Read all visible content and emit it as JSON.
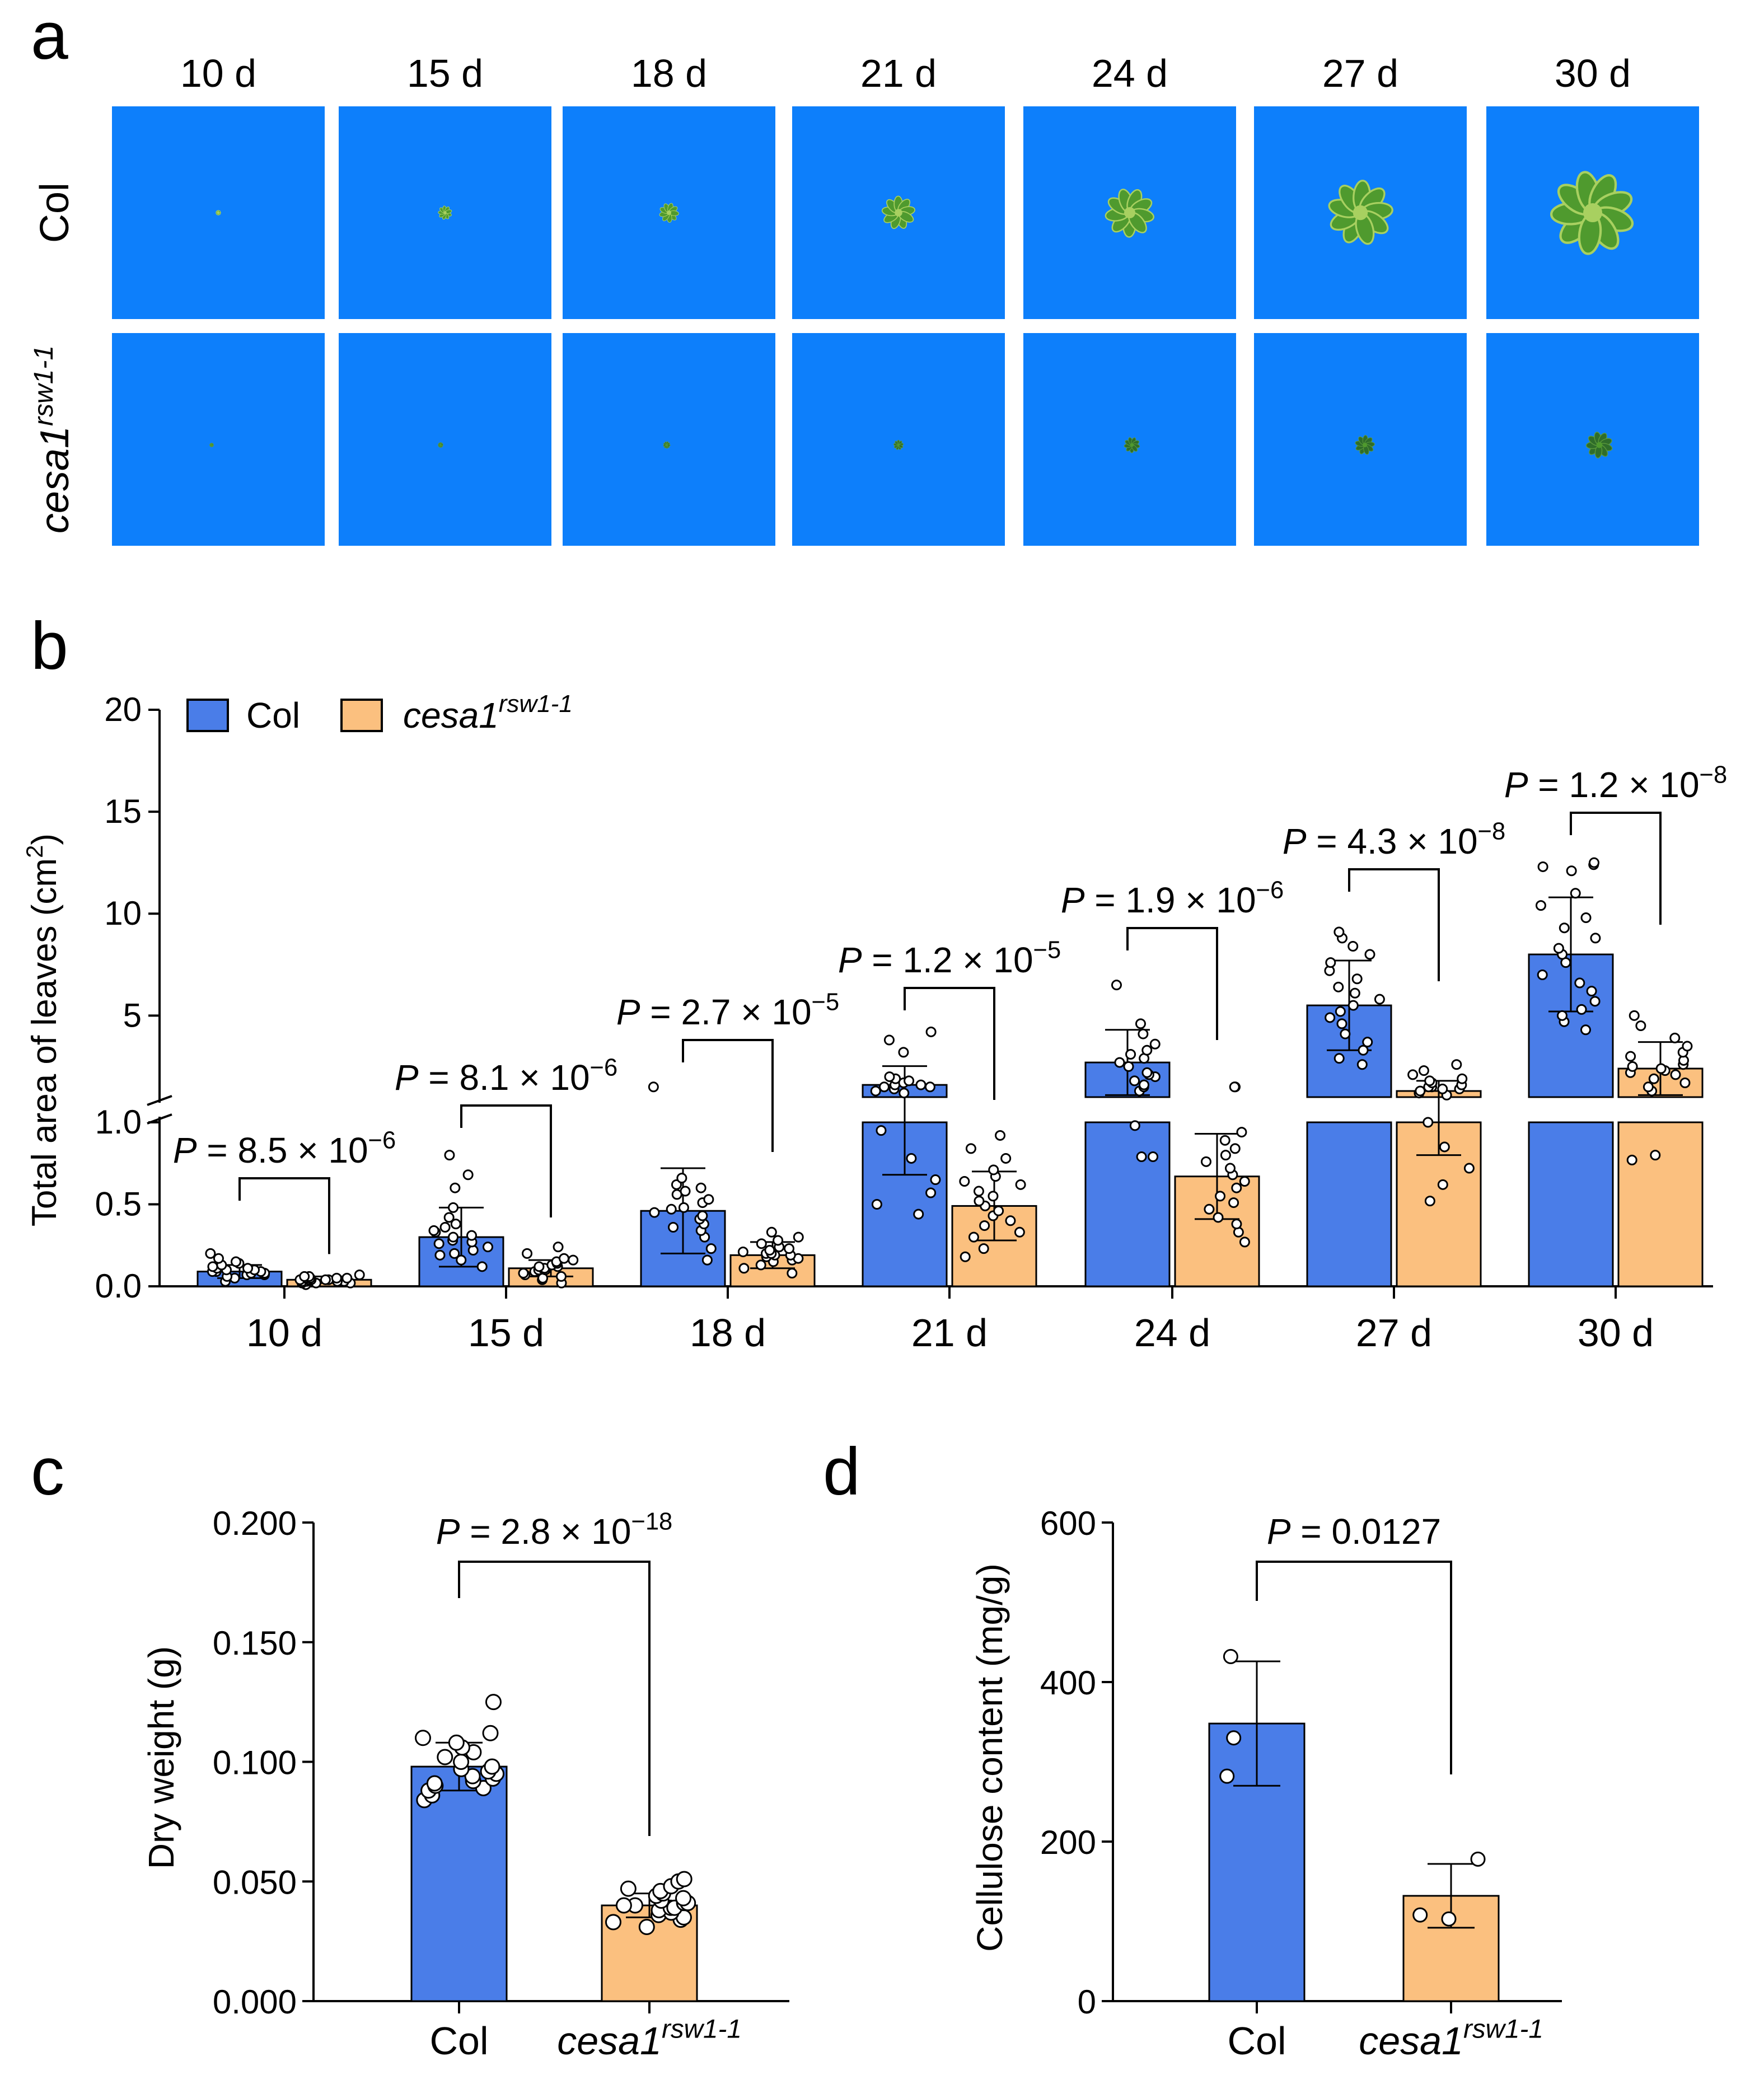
{
  "panel_labels": {
    "a": "a",
    "b": "b",
    "c": "c",
    "d": "d"
  },
  "colors": {
    "col": "#4a7de8",
    "mutant": "#fbc07f",
    "photo_bg": "#0d7ffb",
    "plant": "#4f9a2e",
    "plant_light": "#a8d060",
    "mutant_plant": "#2f6d2a"
  },
  "panel_a": {
    "days": [
      "10 d",
      "15 d",
      "18 d",
      "21 d",
      "24 d",
      "27 d",
      "30 d"
    ],
    "rows": [
      {
        "label": "Col",
        "italic": false,
        "plant_sizes": [
          0.05,
          0.14,
          0.2,
          0.34,
          0.5,
          0.66,
          0.85
        ]
      },
      {
        "label": "cesa1",
        "sup": "rsw1-1",
        "italic": true,
        "plant_sizes": [
          0.03,
          0.05,
          0.07,
          0.1,
          0.16,
          0.2,
          0.27
        ]
      }
    ]
  },
  "chart_data": [
    {
      "id": "b",
      "type": "bar",
      "title": "",
      "xlabel": "",
      "ylabel": "Total area of leaves (cm",
      "ylabel_sup": "2",
      "ylabel_tail": ")",
      "axis_break": true,
      "ylim_lower": [
        0,
        1.0
      ],
      "ylim_upper": [
        1.0,
        20
      ],
      "yticks_lower": [
        "0.0",
        "0.5",
        "1.0"
      ],
      "yticks_upper": [
        "5",
        "10",
        "15",
        "20"
      ],
      "legend": {
        "position": "top-left",
        "entries": [
          {
            "label": "Col",
            "series": "Col"
          },
          {
            "label": "cesa1",
            "sup": "rsw1-1",
            "italic": true,
            "series": "cesa1rsw1-1"
          }
        ]
      },
      "categories": [
        "10 d",
        "15 d",
        "18 d",
        "21 d",
        "24 d",
        "27 d",
        "30 d"
      ],
      "series": [
        {
          "name": "Col",
          "values": [
            0.09,
            0.3,
            0.46,
            1.6,
            2.7,
            5.5,
            8.0
          ],
          "sd": [
            0.04,
            0.18,
            0.26,
            0.92,
            1.6,
            2.2,
            2.8
          ],
          "points": [
            [
              0.03,
              0.05,
              0.06,
              0.07,
              0.07,
              0.08,
              0.08,
              0.09,
              0.09,
              0.09,
              0.1,
              0.1,
              0.11,
              0.11,
              0.12,
              0.13,
              0.14,
              0.15,
              0.17,
              0.2
            ],
            [
              0.12,
              0.16,
              0.19,
              0.2,
              0.22,
              0.24,
              0.26,
              0.27,
              0.28,
              0.3,
              0.31,
              0.33,
              0.34,
              0.36,
              0.38,
              0.42,
              0.48,
              0.6,
              0.68,
              0.8
            ],
            [
              0.16,
              0.23,
              0.3,
              0.34,
              0.36,
              0.38,
              0.41,
              0.43,
              0.45,
              0.47,
              0.48,
              0.51,
              0.53,
              0.56,
              0.58,
              0.6,
              0.62,
              0.66,
              1.5
            ],
            [
              0.44,
              0.5,
              0.57,
              0.65,
              0.78,
              0.95,
              1.2,
              1.3,
              1.4,
              1.5,
              1.5,
              1.6,
              1.6,
              1.7,
              1.8,
              1.9,
              2.0,
              3.2,
              3.8,
              4.2
            ],
            [
              0.79,
              0.79,
              0.98,
              1.3,
              1.5,
              1.6,
              1.8,
              2.0,
              2.1,
              2.2,
              2.5,
              2.7,
              2.9,
              3.1,
              3.3,
              3.6,
              4.1,
              4.6,
              6.5
            ],
            [
              2.6,
              2.9,
              3.3,
              3.7,
              4.1,
              4.6,
              4.9,
              5.2,
              5.5,
              5.8,
              6.1,
              6.4,
              6.8,
              7.2,
              7.6,
              8.0,
              8.4,
              8.8,
              9.1
            ],
            [
              4.3,
              4.7,
              5.0,
              5.3,
              5.7,
              6.2,
              6.6,
              7.0,
              7.6,
              8.0,
              8.3,
              8.8,
              9.3,
              9.8,
              10.4,
              11.0,
              12.1,
              12.3,
              12.4,
              12.5
            ]
          ]
        },
        {
          "name": "cesa1rsw1-1",
          "values": [
            0.04,
            0.11,
            0.19,
            0.49,
            0.67,
            1.3,
            2.4
          ],
          "sd": [
            0.02,
            0.05,
            0.08,
            0.21,
            0.26,
            0.5,
            1.3
          ],
          "points": [
            [
              0.01,
              0.02,
              0.02,
              0.02,
              0.03,
              0.03,
              0.03,
              0.03,
              0.04,
              0.04,
              0.04,
              0.04,
              0.04,
              0.05,
              0.05,
              0.05,
              0.05,
              0.06,
              0.06,
              0.07
            ],
            [
              0.02,
              0.04,
              0.05,
              0.06,
              0.07,
              0.08,
              0.09,
              0.1,
              0.1,
              0.11,
              0.11,
              0.12,
              0.12,
              0.13,
              0.14,
              0.15,
              0.16,
              0.17,
              0.2,
              0.24
            ],
            [
              0.08,
              0.11,
              0.13,
              0.15,
              0.16,
              0.17,
              0.18,
              0.19,
              0.19,
              0.2,
              0.2,
              0.21,
              0.22,
              0.23,
              0.24,
              0.26,
              0.28,
              0.3,
              0.33
            ],
            [
              0.18,
              0.23,
              0.3,
              0.33,
              0.37,
              0.4,
              0.43,
              0.46,
              0.49,
              0.52,
              0.55,
              0.58,
              0.62,
              0.64,
              0.67,
              0.71,
              0.78,
              0.84,
              0.92
            ],
            [
              0.27,
              0.33,
              0.38,
              0.42,
              0.47,
              0.51,
              0.55,
              0.6,
              0.64,
              0.68,
              0.72,
              0.76,
              0.8,
              0.84,
              0.89,
              0.94,
              1.5,
              1.5
            ],
            [
              0.52,
              0.62,
              0.72,
              0.85,
              1.0,
              1.1,
              1.2,
              1.3,
              1.4,
              1.4,
              1.5,
              1.5,
              1.6,
              1.7,
              1.8,
              1.9,
              2.1,
              2.3,
              2.6
            ],
            [
              0.77,
              0.8,
              1.3,
              1.5,
              1.7,
              1.9,
              2.1,
              2.2,
              2.3,
              2.4,
              2.5,
              2.6,
              2.8,
              3.0,
              3.2,
              3.5,
              3.9,
              4.5,
              5.0
            ]
          ]
        }
      ],
      "annotations": [
        {
          "group": 0,
          "text": "P",
          "eq": " = 8.5 × 10",
          "exp": "−6"
        },
        {
          "group": 1,
          "text": "P",
          "eq": " = 8.1 × 10",
          "exp": "−6"
        },
        {
          "group": 2,
          "text": "P",
          "eq": " = 2.7 × 10",
          "exp": "−5"
        },
        {
          "group": 3,
          "text": "P",
          "eq": " = 1.2 × 10",
          "exp": "−5"
        },
        {
          "group": 4,
          "text": "P",
          "eq": " = 1.9 × 10",
          "exp": "−6"
        },
        {
          "group": 5,
          "text": "P",
          "eq": " = 4.3 × 10",
          "exp": "−8"
        },
        {
          "group": 6,
          "text": "P",
          "eq": " = 1.2 × 10",
          "exp": "−8"
        }
      ]
    },
    {
      "id": "c",
      "type": "bar",
      "title": "",
      "xlabel": "",
      "ylabel": "Dry weight (g)",
      "ylim": [
        0,
        0.2
      ],
      "yticks": [
        "0.000",
        "0.050",
        "0.100",
        "0.150",
        "0.200"
      ],
      "categories": [
        "Col",
        "cesa1"
      ],
      "category_sup": [
        "",
        "rsw1-1"
      ],
      "category_italic": [
        false,
        true
      ],
      "series": [
        {
          "name": "Dry weight",
          "values": [
            0.098,
            0.04
          ],
          "sd": [
            0.01,
            0.005
          ],
          "points": [
            [
              0.084,
              0.086,
              0.088,
              0.089,
              0.09,
              0.091,
              0.092,
              0.093,
              0.094,
              0.095,
              0.096,
              0.097,
              0.098,
              0.1,
              0.102,
              0.104,
              0.106,
              0.108,
              0.11,
              0.112,
              0.125
            ],
            [
              0.031,
              0.033,
              0.034,
              0.035,
              0.036,
              0.037,
              0.038,
              0.039,
              0.039,
              0.04,
              0.04,
              0.041,
              0.041,
              0.042,
              0.043,
              0.044,
              0.045,
              0.046,
              0.047,
              0.048,
              0.05,
              0.051
            ]
          ]
        }
      ],
      "annotation": {
        "text": "P",
        "eq": " = 2.8 × 10",
        "exp": "−18"
      }
    },
    {
      "id": "d",
      "type": "bar",
      "title": "",
      "xlabel": "",
      "ylabel": "Cellulose content (mg/g)",
      "ylim": [
        0,
        600
      ],
      "yticks": [
        "0",
        "200",
        "400",
        "600"
      ],
      "categories": [
        "Col",
        "cesa1"
      ],
      "category_sup": [
        "",
        "rsw1-1"
      ],
      "category_italic": [
        false,
        true
      ],
      "series": [
        {
          "name": "Cellulose content",
          "values": [
            348,
            132
          ],
          "sd": [
            78,
            40
          ],
          "points": [
            [
              282,
              330,
              432
            ],
            [
              103,
              108,
              178
            ]
          ]
        }
      ],
      "annotation": {
        "text": "P",
        "eq": " = 0.0127",
        "exp": ""
      }
    }
  ]
}
